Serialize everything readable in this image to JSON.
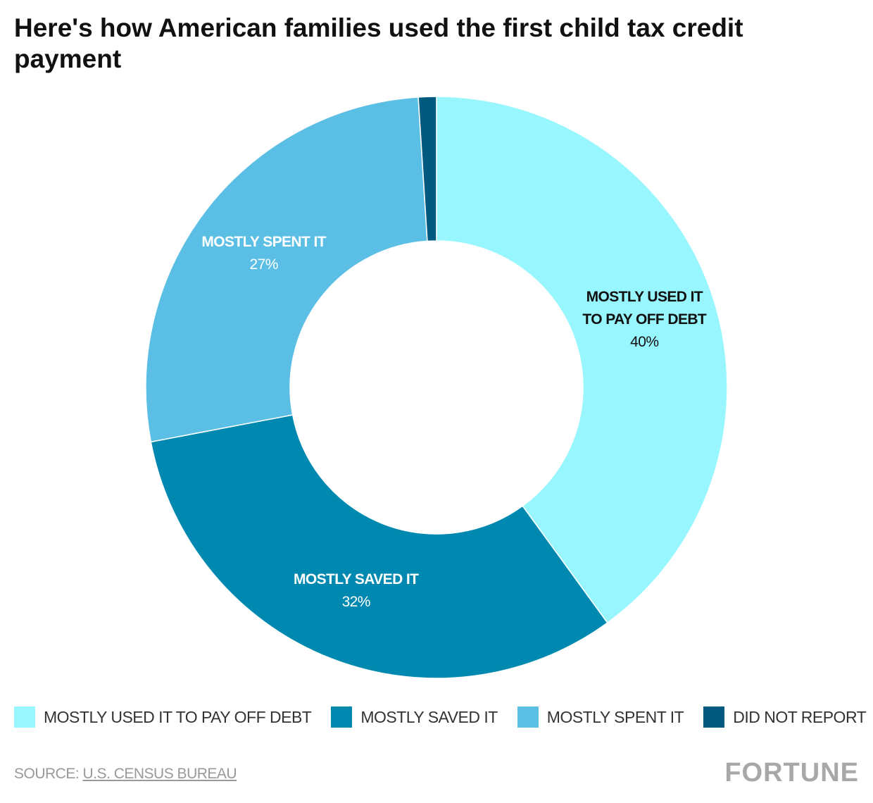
{
  "chart_data": {
    "type": "pie",
    "title": "Here's how American families used the first child tax credit payment",
    "categories": [
      "MOSTLY USED IT TO PAY OFF DEBT",
      "MOSTLY SAVED IT",
      "MOSTLY SPENT IT",
      "DID NOT REPORT"
    ],
    "values": [
      40,
      32,
      27,
      1
    ],
    "value_labels": [
      "40%",
      "32%",
      "27%",
      null
    ],
    "colors": [
      "#98f6fe",
      "#0089b0",
      "#5bbfe5",
      "#005a80"
    ],
    "label_colors": [
      "#111111",
      "#ffffff",
      "#ffffff",
      "#ffffff"
    ],
    "donut": true,
    "source_label": "SOURCE:",
    "source": "U.S. CENSUS BUREAU",
    "brand": "FORTUNE"
  }
}
